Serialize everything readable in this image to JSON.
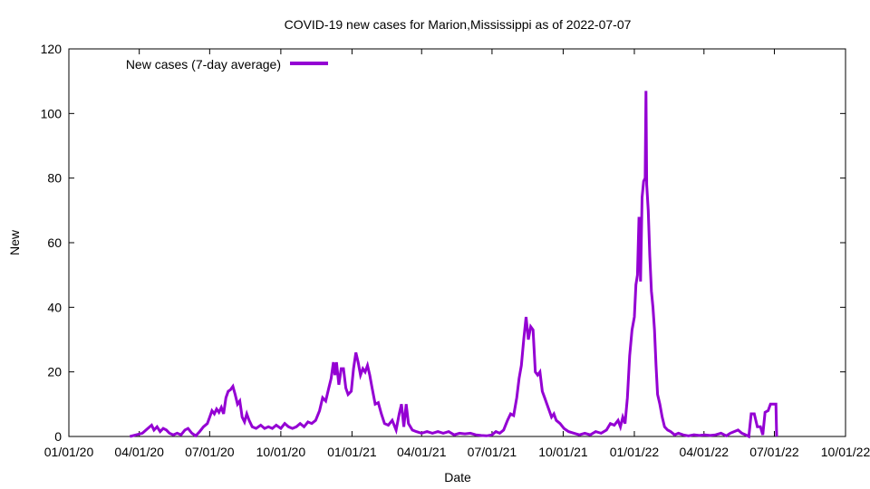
{
  "chart_data": {
    "type": "line",
    "title": "COVID-19 new cases for Marion,Mississippi as of 2022-07-07",
    "xlabel": "Date",
    "ylabel": "New",
    "xlim": [
      "2020-01-01",
      "2022-10-01"
    ],
    "ylim": [
      0,
      120
    ],
    "x_tick_labels": [
      "01/01/20",
      "04/01/20",
      "07/01/20",
      "10/01/20",
      "01/01/21",
      "04/01/21",
      "07/01/21",
      "10/01/21",
      "01/01/22",
      "04/01/22",
      "07/01/22",
      "10/01/22"
    ],
    "y_tick_labels": [
      "0",
      "20",
      "40",
      "60",
      "80",
      "100",
      "120"
    ],
    "legend_position": "top-left",
    "grid": false,
    "series": [
      {
        "name": "New cases (7-day average)",
        "color": "#9400d3",
        "points": [
          [
            "2020-03-20",
            0
          ],
          [
            "2020-03-28",
            0.5
          ],
          [
            "2020-04-05",
            1
          ],
          [
            "2020-04-12",
            2.5
          ],
          [
            "2020-04-17",
            3.5
          ],
          [
            "2020-04-20",
            2
          ],
          [
            "2020-04-24",
            3
          ],
          [
            "2020-04-28",
            1.5
          ],
          [
            "2020-05-02",
            2.5
          ],
          [
            "2020-05-06",
            2
          ],
          [
            "2020-05-10",
            1
          ],
          [
            "2020-05-15",
            0.5
          ],
          [
            "2020-05-20",
            1
          ],
          [
            "2020-05-25",
            0.5
          ],
          [
            "2020-05-30",
            2
          ],
          [
            "2020-06-03",
            2.5
          ],
          [
            "2020-06-08",
            1
          ],
          [
            "2020-06-13",
            0.2
          ],
          [
            "2020-06-18",
            1.5
          ],
          [
            "2020-06-23",
            3
          ],
          [
            "2020-06-28",
            4
          ],
          [
            "2020-07-01",
            6
          ],
          [
            "2020-07-04",
            8
          ],
          [
            "2020-07-07",
            7
          ],
          [
            "2020-07-10",
            8.5
          ],
          [
            "2020-07-13",
            7.5
          ],
          [
            "2020-07-16",
            9
          ],
          [
            "2020-07-19",
            7
          ],
          [
            "2020-07-22",
            12
          ],
          [
            "2020-07-25",
            14
          ],
          [
            "2020-07-28",
            14.5
          ],
          [
            "2020-07-31",
            15.5
          ],
          [
            "2020-08-03",
            13
          ],
          [
            "2020-08-06",
            10
          ],
          [
            "2020-08-09",
            11
          ],
          [
            "2020-08-12",
            6
          ],
          [
            "2020-08-15",
            4.5
          ],
          [
            "2020-08-18",
            7
          ],
          [
            "2020-08-21",
            5
          ],
          [
            "2020-08-25",
            3
          ],
          [
            "2020-08-30",
            2.5
          ],
          [
            "2020-09-05",
            3.5
          ],
          [
            "2020-09-10",
            2.5
          ],
          [
            "2020-09-15",
            3
          ],
          [
            "2020-09-20",
            2.5
          ],
          [
            "2020-09-25",
            3.5
          ],
          [
            "2020-10-01",
            2.5
          ],
          [
            "2020-10-06",
            4
          ],
          [
            "2020-10-11",
            3
          ],
          [
            "2020-10-16",
            2.5
          ],
          [
            "2020-10-21",
            3
          ],
          [
            "2020-10-26",
            4
          ],
          [
            "2020-10-31",
            3
          ],
          [
            "2020-11-05",
            4.5
          ],
          [
            "2020-11-10",
            4
          ],
          [
            "2020-11-15",
            5
          ],
          [
            "2020-11-20",
            8
          ],
          [
            "2020-11-24",
            12
          ],
          [
            "2020-11-28",
            11
          ],
          [
            "2020-12-02",
            15
          ],
          [
            "2020-12-05",
            18
          ],
          [
            "2020-12-08",
            23
          ],
          [
            "2020-12-10",
            19
          ],
          [
            "2020-12-12",
            23
          ],
          [
            "2020-12-15",
            16
          ],
          [
            "2020-12-18",
            21
          ],
          [
            "2020-12-21",
            21
          ],
          [
            "2020-12-24",
            15
          ],
          [
            "2020-12-27",
            13
          ],
          [
            "2020-12-31",
            14
          ],
          [
            "2021-01-03",
            21
          ],
          [
            "2021-01-06",
            26
          ],
          [
            "2021-01-09",
            23
          ],
          [
            "2021-01-12",
            19
          ],
          [
            "2021-01-15",
            21
          ],
          [
            "2021-01-18",
            20
          ],
          [
            "2021-01-21",
            22
          ],
          [
            "2021-01-24",
            19
          ],
          [
            "2021-01-27",
            15
          ],
          [
            "2021-01-31",
            10
          ],
          [
            "2021-02-04",
            10.5
          ],
          [
            "2021-02-08",
            7
          ],
          [
            "2021-02-12",
            4
          ],
          [
            "2021-02-17",
            3.5
          ],
          [
            "2021-02-22",
            5
          ],
          [
            "2021-02-27",
            2
          ],
          [
            "2021-03-03",
            7
          ],
          [
            "2021-03-06",
            10
          ],
          [
            "2021-03-09",
            3
          ],
          [
            "2021-03-12",
            10
          ],
          [
            "2021-03-15",
            4
          ],
          [
            "2021-03-20",
            2
          ],
          [
            "2021-03-25",
            1.5
          ],
          [
            "2021-04-01",
            1
          ],
          [
            "2021-04-08",
            1.5
          ],
          [
            "2021-04-15",
            1
          ],
          [
            "2021-04-22",
            1.5
          ],
          [
            "2021-04-29",
            1
          ],
          [
            "2021-05-06",
            1.5
          ],
          [
            "2021-05-13",
            0.5
          ],
          [
            "2021-05-20",
            1
          ],
          [
            "2021-05-27",
            0.8
          ],
          [
            "2021-06-03",
            1
          ],
          [
            "2021-06-10",
            0.5
          ],
          [
            "2021-06-17",
            0.3
          ],
          [
            "2021-06-24",
            0.2
          ],
          [
            "2021-07-01",
            0.5
          ],
          [
            "2021-07-06",
            1.5
          ],
          [
            "2021-07-11",
            1
          ],
          [
            "2021-07-16",
            2
          ],
          [
            "2021-07-21",
            5
          ],
          [
            "2021-07-25",
            7
          ],
          [
            "2021-07-29",
            6.5
          ],
          [
            "2021-08-02",
            12
          ],
          [
            "2021-08-05",
            18
          ],
          [
            "2021-08-08",
            22
          ],
          [
            "2021-08-11",
            30
          ],
          [
            "2021-08-14",
            37
          ],
          [
            "2021-08-17",
            30
          ],
          [
            "2021-08-20",
            34
          ],
          [
            "2021-08-23",
            33
          ],
          [
            "2021-08-26",
            20
          ],
          [
            "2021-08-29",
            19
          ],
          [
            "2021-09-01",
            20
          ],
          [
            "2021-09-04",
            14
          ],
          [
            "2021-09-07",
            12
          ],
          [
            "2021-09-10",
            10
          ],
          [
            "2021-09-13",
            8
          ],
          [
            "2021-09-16",
            6
          ],
          [
            "2021-09-19",
            7
          ],
          [
            "2021-09-22",
            5
          ],
          [
            "2021-09-27",
            4
          ],
          [
            "2021-10-02",
            2.5
          ],
          [
            "2021-10-08",
            1.5
          ],
          [
            "2021-10-15",
            1
          ],
          [
            "2021-10-22",
            0.5
          ],
          [
            "2021-10-29",
            1
          ],
          [
            "2021-11-05",
            0.5
          ],
          [
            "2021-11-12",
            1.5
          ],
          [
            "2021-11-19",
            1
          ],
          [
            "2021-11-26",
            2
          ],
          [
            "2021-12-01",
            4
          ],
          [
            "2021-12-06",
            3.5
          ],
          [
            "2021-12-11",
            5
          ],
          [
            "2021-12-14",
            3
          ],
          [
            "2021-12-17",
            6
          ],
          [
            "2021-12-20",
            4
          ],
          [
            "2021-12-23",
            12
          ],
          [
            "2021-12-26",
            25
          ],
          [
            "2021-12-29",
            33
          ],
          [
            "2022-01-01",
            37
          ],
          [
            "2022-01-03",
            47
          ],
          [
            "2022-01-05",
            50
          ],
          [
            "2022-01-07",
            68
          ],
          [
            "2022-01-09",
            48
          ],
          [
            "2022-01-11",
            74
          ],
          [
            "2022-01-13",
            79
          ],
          [
            "2022-01-15",
            80
          ],
          [
            "2022-01-16",
            107
          ],
          [
            "2022-01-17",
            78
          ],
          [
            "2022-01-19",
            70
          ],
          [
            "2022-01-21",
            56
          ],
          [
            "2022-01-23",
            45
          ],
          [
            "2022-01-25",
            40
          ],
          [
            "2022-01-27",
            33
          ],
          [
            "2022-01-29",
            22
          ],
          [
            "2022-01-31",
            13
          ],
          [
            "2022-02-03",
            10
          ],
          [
            "2022-02-06",
            6
          ],
          [
            "2022-02-09",
            3
          ],
          [
            "2022-02-13",
            2
          ],
          [
            "2022-02-17",
            1.5
          ],
          [
            "2022-02-22",
            0.5
          ],
          [
            "2022-02-27",
            1
          ],
          [
            "2022-03-05",
            0.5
          ],
          [
            "2022-03-12",
            0.2
          ],
          [
            "2022-03-19",
            0.5
          ],
          [
            "2022-03-26",
            0.3
          ],
          [
            "2022-04-02",
            0.5
          ],
          [
            "2022-04-09",
            0.3
          ],
          [
            "2022-04-16",
            0.5
          ],
          [
            "2022-04-23",
            1
          ],
          [
            "2022-04-30",
            0.2
          ],
          [
            "2022-05-05",
            1
          ],
          [
            "2022-05-10",
            1.5
          ],
          [
            "2022-05-15",
            2
          ],
          [
            "2022-05-20",
            1
          ],
          [
            "2022-05-25",
            0.5
          ],
          [
            "2022-05-29",
            0
          ],
          [
            "2022-06-01",
            7
          ],
          [
            "2022-06-05",
            7
          ],
          [
            "2022-06-09",
            3
          ],
          [
            "2022-06-13",
            3
          ],
          [
            "2022-06-16",
            0.5
          ],
          [
            "2022-06-19",
            7.5
          ],
          [
            "2022-06-23",
            8
          ],
          [
            "2022-06-26",
            10
          ],
          [
            "2022-07-01",
            10
          ],
          [
            "2022-07-03",
            10
          ],
          [
            "2022-07-04",
            0
          ]
        ]
      }
    ]
  }
}
